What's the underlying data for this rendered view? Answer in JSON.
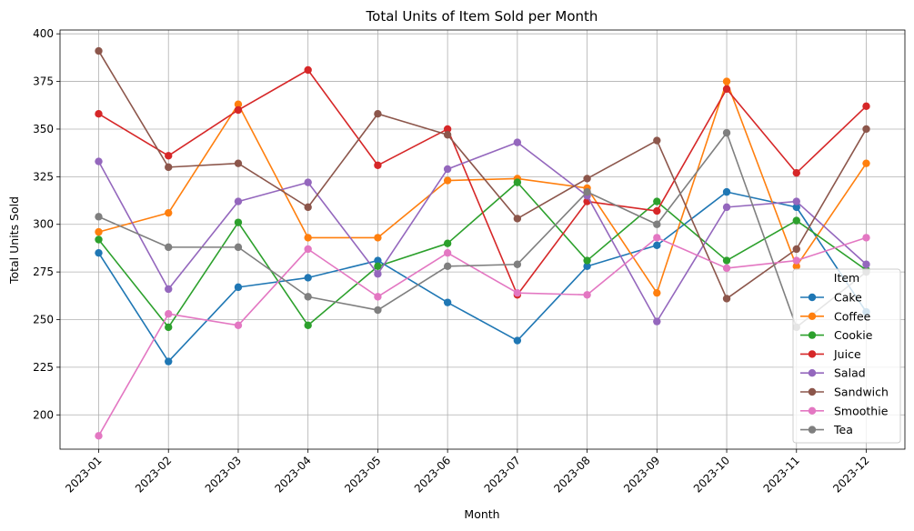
{
  "chart_data": {
    "type": "line",
    "title": "Total Units of Item Sold per Month",
    "xlabel": "Month",
    "ylabel": "Total Units Sold",
    "categories": [
      "2023-01",
      "2023-02",
      "2023-03",
      "2023-04",
      "2023-05",
      "2023-06",
      "2023-07",
      "2023-08",
      "2023-09",
      "2023-10",
      "2023-11",
      "2023-12"
    ],
    "ylim": [
      182,
      402
    ],
    "yticks": [
      200,
      225,
      250,
      275,
      300,
      325,
      350,
      375,
      400
    ],
    "grid": true,
    "legend": {
      "title": "Item",
      "placement": "lower-right"
    },
    "series": [
      {
        "name": "Cake",
        "color": "#1f77b4",
        "values": [
          285,
          228,
          267,
          272,
          281,
          259,
          239,
          278,
          289,
          317,
          309,
          254
        ]
      },
      {
        "name": "Coffee",
        "color": "#ff7f0e",
        "values": [
          296,
          306,
          363,
          293,
          293,
          323,
          324,
          319,
          264,
          375,
          278,
          332
        ]
      },
      {
        "name": "Cookie",
        "color": "#2ca02c",
        "values": [
          292,
          246,
          301,
          247,
          278,
          290,
          322,
          281,
          312,
          281,
          302,
          276
        ]
      },
      {
        "name": "Juice",
        "color": "#d62728",
        "values": [
          358,
          336,
          360,
          381,
          331,
          350,
          263,
          312,
          307,
          371,
          327,
          362
        ]
      },
      {
        "name": "Salad",
        "color": "#9467bd",
        "values": [
          333,
          266,
          312,
          322,
          274,
          329,
          343,
          315,
          249,
          309,
          312,
          279
        ]
      },
      {
        "name": "Sandwich",
        "color": "#8c564b",
        "values": [
          391,
          330,
          332,
          309,
          358,
          347,
          303,
          324,
          344,
          261,
          287,
          350
        ]
      },
      {
        "name": "Smoothie",
        "color": "#e377c2",
        "values": [
          189,
          253,
          247,
          287,
          262,
          285,
          264,
          263,
          293,
          277,
          281,
          293
        ]
      },
      {
        "name": "Tea",
        "color": "#7f7f7f",
        "values": [
          304,
          288,
          288,
          262,
          255,
          278,
          279,
          317,
          300,
          348,
          246,
          275
        ]
      }
    ]
  }
}
